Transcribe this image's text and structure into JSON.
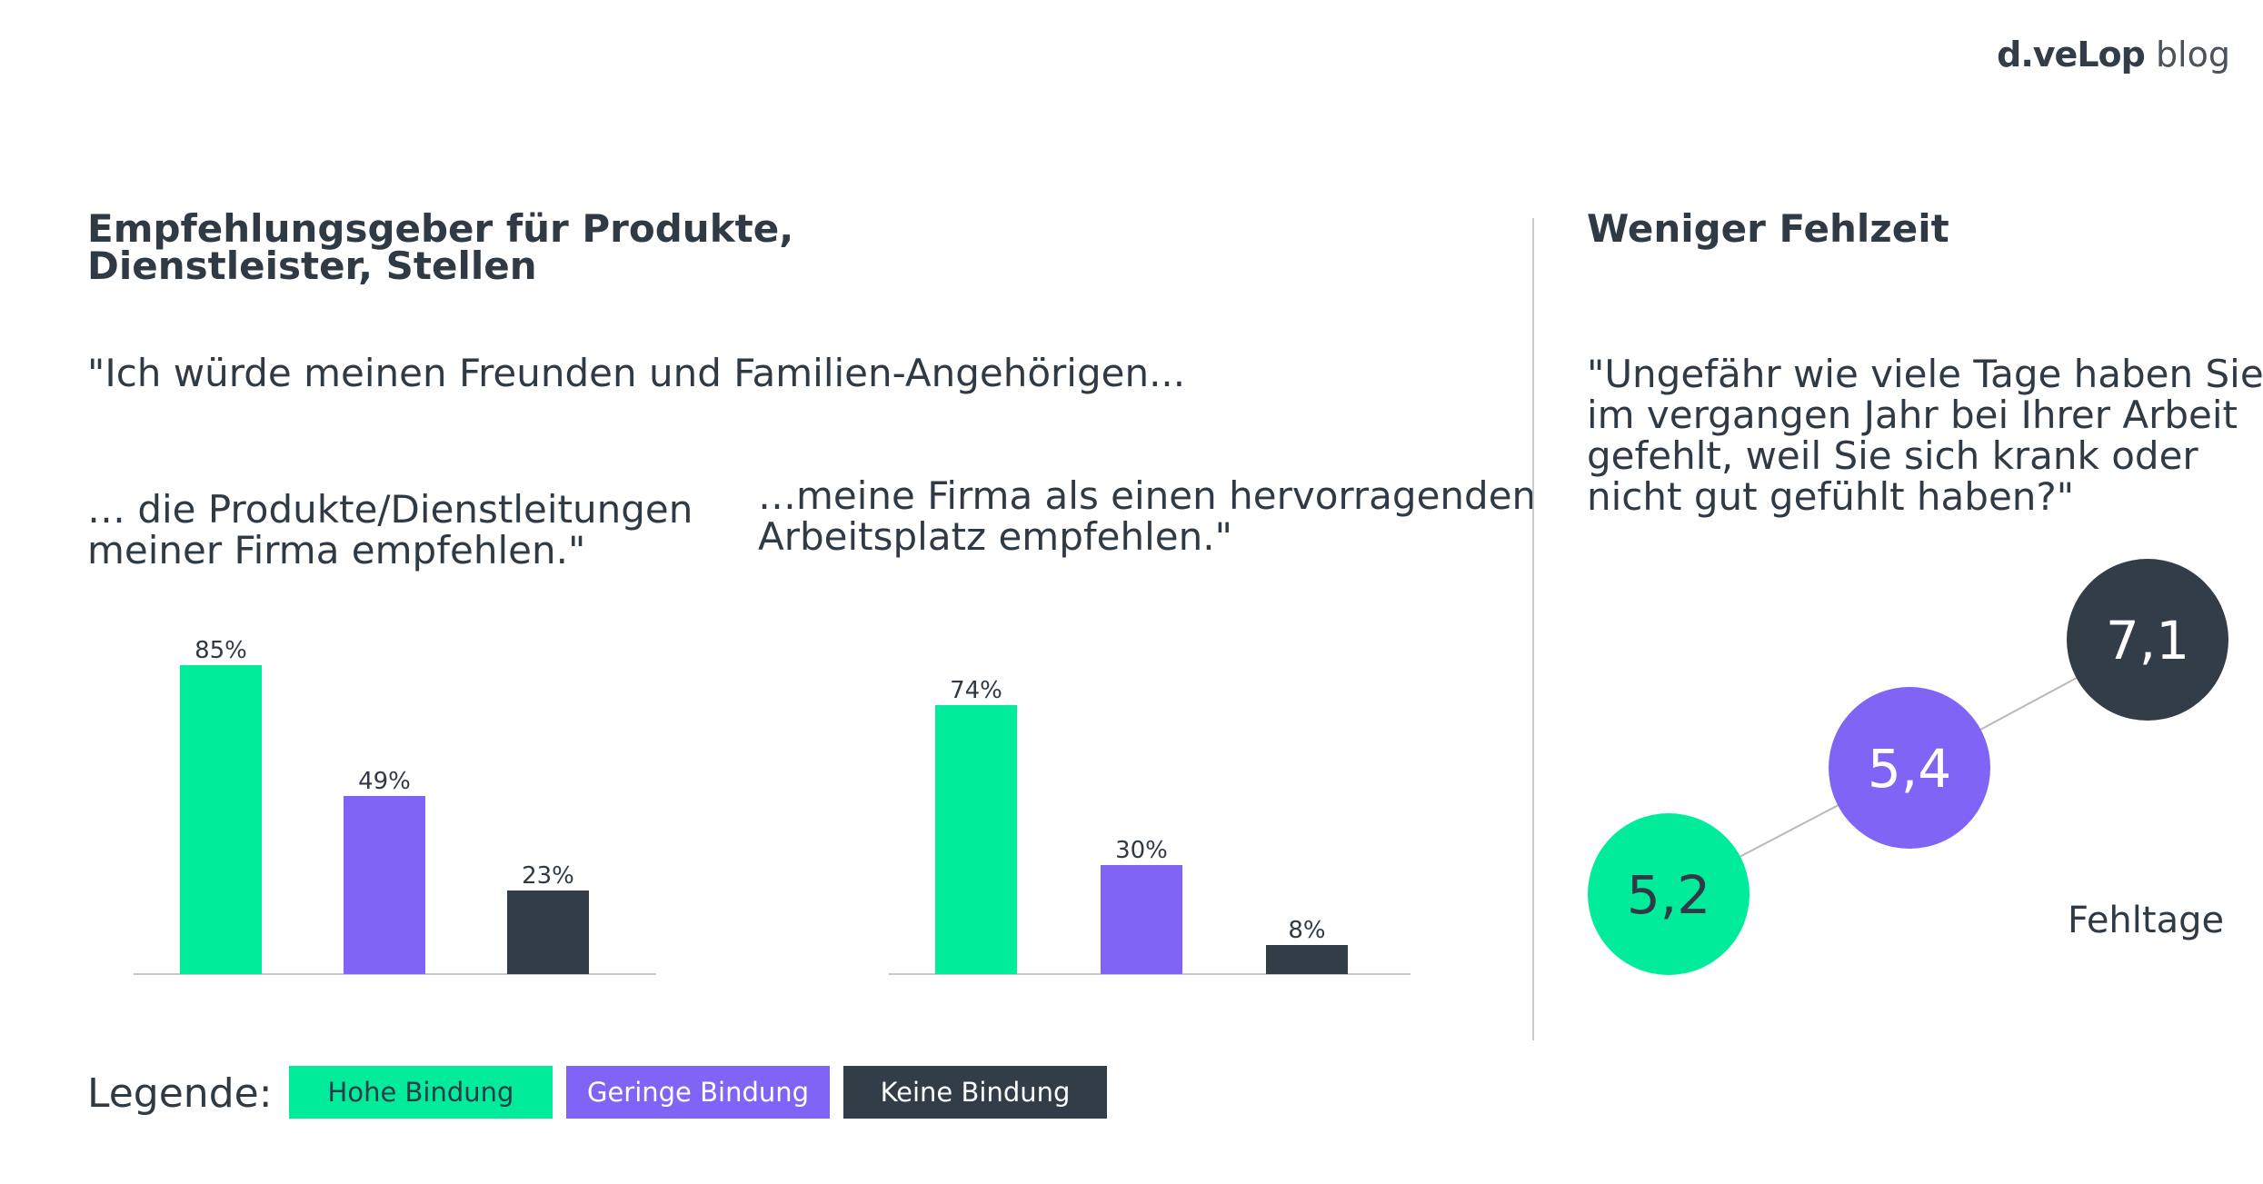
{
  "logo": {
    "brand": "d.veLop",
    "suffix": "blog"
  },
  "left": {
    "title_line1": "Empfehlungsgeber für Produkte,",
    "title_line2": "Dienstleister, Stellen",
    "quote": "\"Ich würde meinen Freunden und Familien-Angehörigen...",
    "sub1_line1": "… die Produkte/Dienstleitungen",
    "sub1_line2": "meiner Firma empfehlen.\"",
    "sub2_line1": "…meine Firma als einen hervorragenden",
    "sub2_line2": "Arbeitsplatz empfehlen.\""
  },
  "right": {
    "title": "Weniger Fehlzeit",
    "quote_line1": "\"Ungefähr wie viele Tage haben Sie",
    "quote_line2": "im vergangen Jahr bei Ihrer Arbeit",
    "quote_line3": "gefehlt, weil Sie sich krank oder",
    "quote_line4": "nicht gut gefühlt haben?\"",
    "unit_label": "Fehltage"
  },
  "legend": {
    "title": "Legende:",
    "items": [
      {
        "label": "Hohe Bindung",
        "color": "#00ec9b",
        "text_color": "#2f3a45"
      },
      {
        "label": "Geringe Bindung",
        "color": "#8064f5",
        "text_color": "#ffffff"
      },
      {
        "label": "Keine Bindung",
        "color": "#323d47",
        "text_color": "#ffffff"
      }
    ]
  },
  "chart_data": [
    {
      "type": "bar",
      "categories": [
        "Hohe Bindung",
        "Geringe Bindung",
        "Keine Bindung"
      ],
      "values": [
        85,
        49,
        23
      ],
      "labels": [
        "85%",
        "49%",
        "23%"
      ],
      "colors": [
        "#00ec9b",
        "#8064f5",
        "#323d47"
      ],
      "ylim": [
        0,
        100
      ]
    },
    {
      "type": "bar",
      "categories": [
        "Hohe Bindung",
        "Geringe Bindung",
        "Keine Bindung"
      ],
      "values": [
        74,
        30,
        8
      ],
      "labels": [
        "74%",
        "30%",
        "8%"
      ],
      "colors": [
        "#00ec9b",
        "#8064f5",
        "#323d47"
      ],
      "ylim": [
        0,
        100
      ]
    },
    {
      "type": "scatter",
      "categories": [
        "Hohe Bindung",
        "Geringe Bindung",
        "Keine Bindung"
      ],
      "values": [
        5.2,
        5.4,
        7.1
      ],
      "labels": [
        "5,2",
        "5,4",
        "7,1"
      ],
      "colors": [
        "#00ec9b",
        "#8064f5",
        "#323d47"
      ]
    }
  ]
}
